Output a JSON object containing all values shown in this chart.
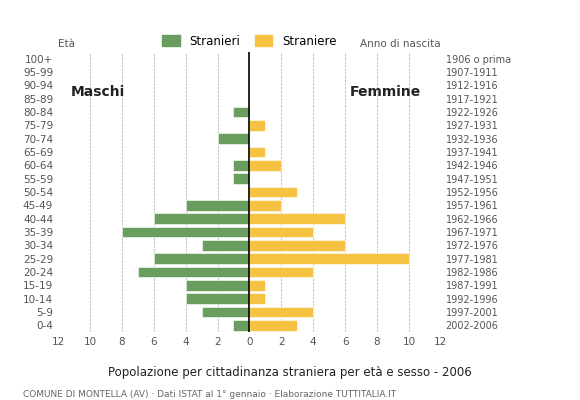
{
  "age_groups": [
    "100+",
    "95-99",
    "90-94",
    "85-89",
    "80-84",
    "75-79",
    "70-74",
    "65-69",
    "60-64",
    "55-59",
    "50-54",
    "45-49",
    "40-44",
    "35-39",
    "30-34",
    "25-29",
    "20-24",
    "15-19",
    "10-14",
    "5-9",
    "0-4"
  ],
  "birth_years": [
    "1906 o prima",
    "1907-1911",
    "1912-1916",
    "1917-1921",
    "1922-1926",
    "1927-1931",
    "1932-1936",
    "1937-1941",
    "1942-1946",
    "1947-1951",
    "1952-1956",
    "1957-1961",
    "1962-1966",
    "1967-1971",
    "1972-1976",
    "1977-1981",
    "1982-1986",
    "1987-1991",
    "1992-1996",
    "1997-2001",
    "2002-2006"
  ],
  "males": [
    0,
    0,
    0,
    0,
    1,
    0,
    2,
    0,
    1,
    1,
    0,
    4,
    6,
    8,
    3,
    6,
    7,
    4,
    4,
    3,
    1
  ],
  "females": [
    0,
    0,
    0,
    0,
    0,
    1,
    0,
    1,
    2,
    0,
    3,
    2,
    6,
    4,
    6,
    10,
    4,
    1,
    1,
    4,
    3
  ],
  "male_color": "#6a9e5e",
  "female_color": "#f5c242",
  "background_color": "#ffffff",
  "grid_color": "#aaaaaa",
  "title": "Popolazione per cittadinanza straniera per età e sesso - 2006",
  "subtitle": "COMUNE DI MONTELLA (AV) · Dati ISTAT al 1° gennaio · Elaborazione TUTTITALIA.IT",
  "legend_males": "Stranieri",
  "legend_females": "Straniere",
  "label_maschi": "Maschi",
  "label_femmine": "Femmine",
  "xmax": 12,
  "tick_fontsize": 7.5,
  "bar_height": 0.78
}
